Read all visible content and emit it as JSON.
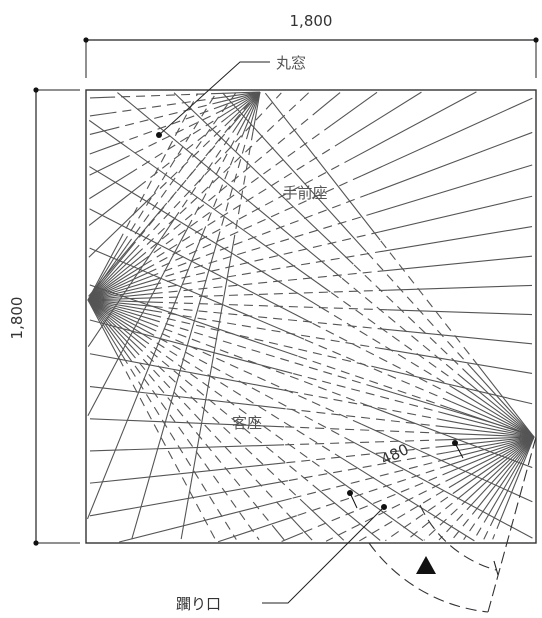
{
  "dimensions": {
    "width_label": "1,800",
    "height_label": "1,800",
    "depth_label": "480"
  },
  "labels": {
    "round_window": "丸窓",
    "host_seat": "手前座",
    "guest_seat": "客座",
    "crawl_entrance": "躙り口"
  },
  "colors": {
    "line": "#555555",
    "frame": "#333333",
    "background": "#ffffff"
  }
}
